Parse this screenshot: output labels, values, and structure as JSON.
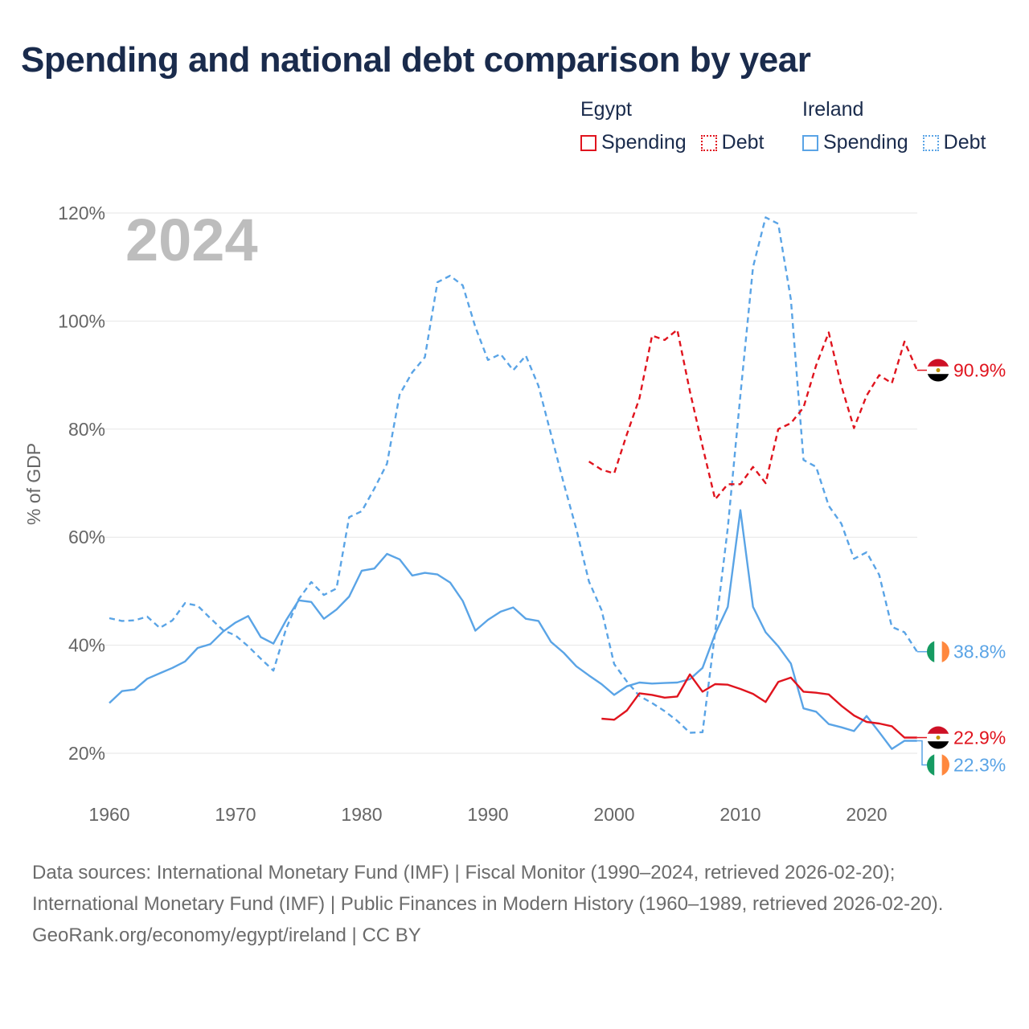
{
  "title": "Spending and national debt comparison by year",
  "legend": {
    "groups": [
      {
        "country": "Egypt",
        "color": "#e0141e",
        "items": [
          {
            "label": "Spending",
            "style": "solid"
          },
          {
            "label": "Debt",
            "style": "dotted"
          }
        ]
      },
      {
        "country": "Ireland",
        "color": "#5aa4e6",
        "items": [
          {
            "label": "Spending",
            "style": "solid"
          },
          {
            "label": "Debt",
            "style": "dotted"
          }
        ]
      }
    ]
  },
  "chart_data": {
    "type": "line",
    "year_label": "2024",
    "ylabel": "% of GDP",
    "xlim": [
      1960,
      2025
    ],
    "ylim": [
      15,
      120
    ],
    "x_ticks": [
      "1960",
      "1970",
      "1980",
      "1990",
      "2000",
      "2010",
      "2020"
    ],
    "x_tick_values": [
      1960,
      1970,
      1980,
      1990,
      2000,
      2010,
      2020
    ],
    "y_ticks": [
      "20%",
      "40%",
      "60%",
      "80%",
      "100%",
      "120%"
    ],
    "y_tick_values": [
      20,
      40,
      60,
      80,
      100,
      120
    ],
    "series": [
      {
        "name": "Ireland Debt",
        "country": "Ireland",
        "measure": "Debt",
        "color": "#5aa4e6",
        "dashed": true,
        "end_label": "38.8%",
        "flag": "ireland",
        "x": [
          1960,
          1961,
          1962,
          1963,
          1964,
          1965,
          1966,
          1967,
          1968,
          1969,
          1970,
          1971,
          1972,
          1973,
          1974,
          1975,
          1976,
          1977,
          1978,
          1979,
          1980,
          1981,
          1982,
          1983,
          1984,
          1985,
          1986,
          1987,
          1988,
          1989,
          1990,
          1991,
          1992,
          1993,
          1994,
          1995,
          1996,
          1997,
          1998,
          1999,
          2000,
          2001,
          2002,
          2003,
          2004,
          2005,
          2006,
          2007,
          2008,
          2009,
          2010,
          2011,
          2012,
          2013,
          2014,
          2015,
          2016,
          2017,
          2018,
          2019,
          2020,
          2021,
          2022,
          2023,
          2024
        ],
        "y": [
          45.0,
          44.5,
          44.6,
          45.3,
          43.2,
          44.6,
          47.8,
          47.3,
          45.0,
          42.8,
          41.8,
          39.8,
          37.5,
          35.3,
          43.0,
          48.5,
          51.7,
          49.3,
          50.5,
          63.7,
          64.8,
          69.0,
          73.6,
          86.4,
          90.5,
          93.3,
          107.2,
          108.4,
          106.6,
          98.9,
          92.8,
          93.9,
          90.9,
          93.6,
          88.0,
          79.0,
          70.0,
          61.5,
          51.8,
          46.5,
          36.5,
          33.3,
          30.6,
          29.3,
          27.8,
          26.0,
          23.8,
          23.9,
          42.4,
          61.7,
          86.3,
          110.0,
          119.2,
          118.0,
          104.0,
          74.3,
          73.0,
          65.8,
          62.5,
          56.0,
          57.2,
          53.0,
          43.4,
          42.4,
          38.8
        ]
      },
      {
        "name": "Ireland Spending",
        "country": "Ireland",
        "measure": "Spending",
        "color": "#5aa4e6",
        "dashed": false,
        "end_label": "22.3%",
        "flag": "ireland",
        "x": [
          1960,
          1961,
          1962,
          1963,
          1964,
          1965,
          1966,
          1967,
          1968,
          1969,
          1970,
          1971,
          1972,
          1973,
          1974,
          1975,
          1976,
          1977,
          1978,
          1979,
          1980,
          1981,
          1982,
          1983,
          1984,
          1985,
          1986,
          1987,
          1988,
          1989,
          1990,
          1991,
          1992,
          1993,
          1994,
          1995,
          1996,
          1997,
          1998,
          1999,
          2000,
          2001,
          2002,
          2003,
          2004,
          2005,
          2006,
          2007,
          2008,
          2009,
          2010,
          2011,
          2012,
          2013,
          2014,
          2015,
          2016,
          2017,
          2018,
          2019,
          2020,
          2021,
          2022,
          2023,
          2024
        ],
        "y": [
          29.3,
          31.5,
          31.8,
          33.8,
          34.8,
          35.8,
          37.0,
          39.5,
          40.2,
          42.5,
          44.2,
          45.4,
          41.5,
          40.3,
          44.6,
          48.3,
          48.0,
          44.9,
          46.6,
          49.0,
          53.8,
          54.2,
          56.9,
          55.9,
          52.9,
          53.4,
          53.1,
          51.6,
          48.2,
          42.7,
          44.7,
          46.2,
          47.0,
          44.9,
          44.5,
          40.6,
          38.6,
          36.1,
          34.4,
          32.8,
          30.8,
          32.4,
          33.1,
          32.9,
          33.0,
          33.1,
          33.7,
          35.8,
          42.1,
          47.1,
          65.0,
          47.1,
          42.4,
          39.8,
          36.6,
          28.3,
          27.7,
          25.4,
          24.8,
          24.1,
          26.9,
          23.9,
          20.8,
          22.3,
          22.3
        ]
      },
      {
        "name": "Egypt Debt",
        "country": "Egypt",
        "measure": "Debt",
        "color": "#e0141e",
        "dashed": true,
        "end_label": "90.9%",
        "flag": "egypt",
        "x": [
          1998,
          1999,
          2000,
          2001,
          2002,
          2003,
          2004,
          2005,
          2006,
          2007,
          2008,
          2009,
          2010,
          2011,
          2012,
          2013,
          2014,
          2015,
          2016,
          2017,
          2018,
          2019,
          2020,
          2021,
          2022,
          2023,
          2024
        ],
        "y": [
          74.0,
          72.5,
          71.8,
          79.0,
          85.7,
          97.3,
          96.5,
          98.4,
          87.0,
          76.8,
          67.0,
          69.8,
          69.8,
          73.0,
          70.0,
          80.0,
          81.1,
          84.0,
          91.8,
          97.9,
          88.0,
          80.2,
          86.2,
          90.0,
          88.5,
          96.2,
          90.9
        ]
      },
      {
        "name": "Egypt Spending",
        "country": "Egypt",
        "measure": "Spending",
        "color": "#e0141e",
        "dashed": false,
        "end_label": "22.9%",
        "flag": "egypt",
        "x": [
          1999,
          2000,
          2001,
          2002,
          2003,
          2004,
          2005,
          2006,
          2007,
          2008,
          2009,
          2010,
          2011,
          2012,
          2013,
          2014,
          2015,
          2016,
          2017,
          2018,
          2019,
          2020,
          2021,
          2022,
          2023,
          2024
        ],
        "y": [
          26.4,
          26.2,
          27.9,
          31.1,
          30.8,
          30.3,
          30.5,
          34.6,
          31.4,
          32.8,
          32.7,
          31.9,
          31.0,
          29.5,
          33.2,
          34.0,
          31.4,
          31.2,
          30.9,
          28.8,
          27.0,
          25.8,
          25.5,
          25.0,
          22.9,
          22.9
        ]
      }
    ]
  },
  "footer": {
    "sources": "Data sources: International Monetary Fund (IMF) | Fiscal Monitor (1990–2024, retrieved 2026-02-20); International Monetary Fund (IMF) | Public Finances in Modern History (1960–1989, retrieved 2026-02-20).",
    "credit": "GeoRank.org/economy/egypt/ireland | CC BY"
  }
}
